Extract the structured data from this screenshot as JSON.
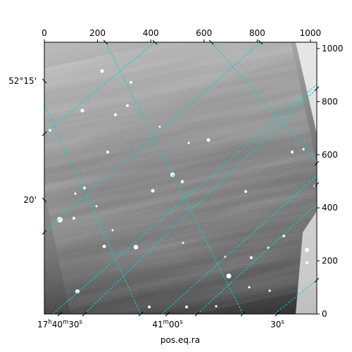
{
  "chart_data": {
    "type": "heatmap",
    "description_kind": "astronomical image with WCS overlay",
    "xlabel": "pos.eq.ra",
    "pixel_axes": {
      "x_range": [
        0,
        1024
      ],
      "y_range": [
        0,
        1024
      ],
      "top_ticks": [
        0,
        200,
        400,
        600,
        800,
        1000
      ],
      "right_ticks": [
        0,
        200,
        400,
        600,
        800,
        1000
      ]
    },
    "world_axes": {
      "ra_ticks": [
        {
          "label": "17h40m30s",
          "main": "17",
          "sup1": "h",
          "mid": "40",
          "sup2": "m",
          "end": "30",
          "sup3": "s"
        },
        {
          "label": "41m00s",
          "main": "41",
          "sup1": "m",
          "mid": "00",
          "sup2": "s",
          "end": "",
          "sup3": ""
        },
        {
          "label": "30s",
          "main": "30",
          "sup1": "s",
          "mid": "",
          "sup2": "",
          "end": "",
          "sup3": ""
        }
      ],
      "dec_ticks": [
        "52°15'",
        "20'"
      ]
    },
    "grid": true,
    "grid_color": "#00d5d5",
    "colormap": "gray"
  }
}
